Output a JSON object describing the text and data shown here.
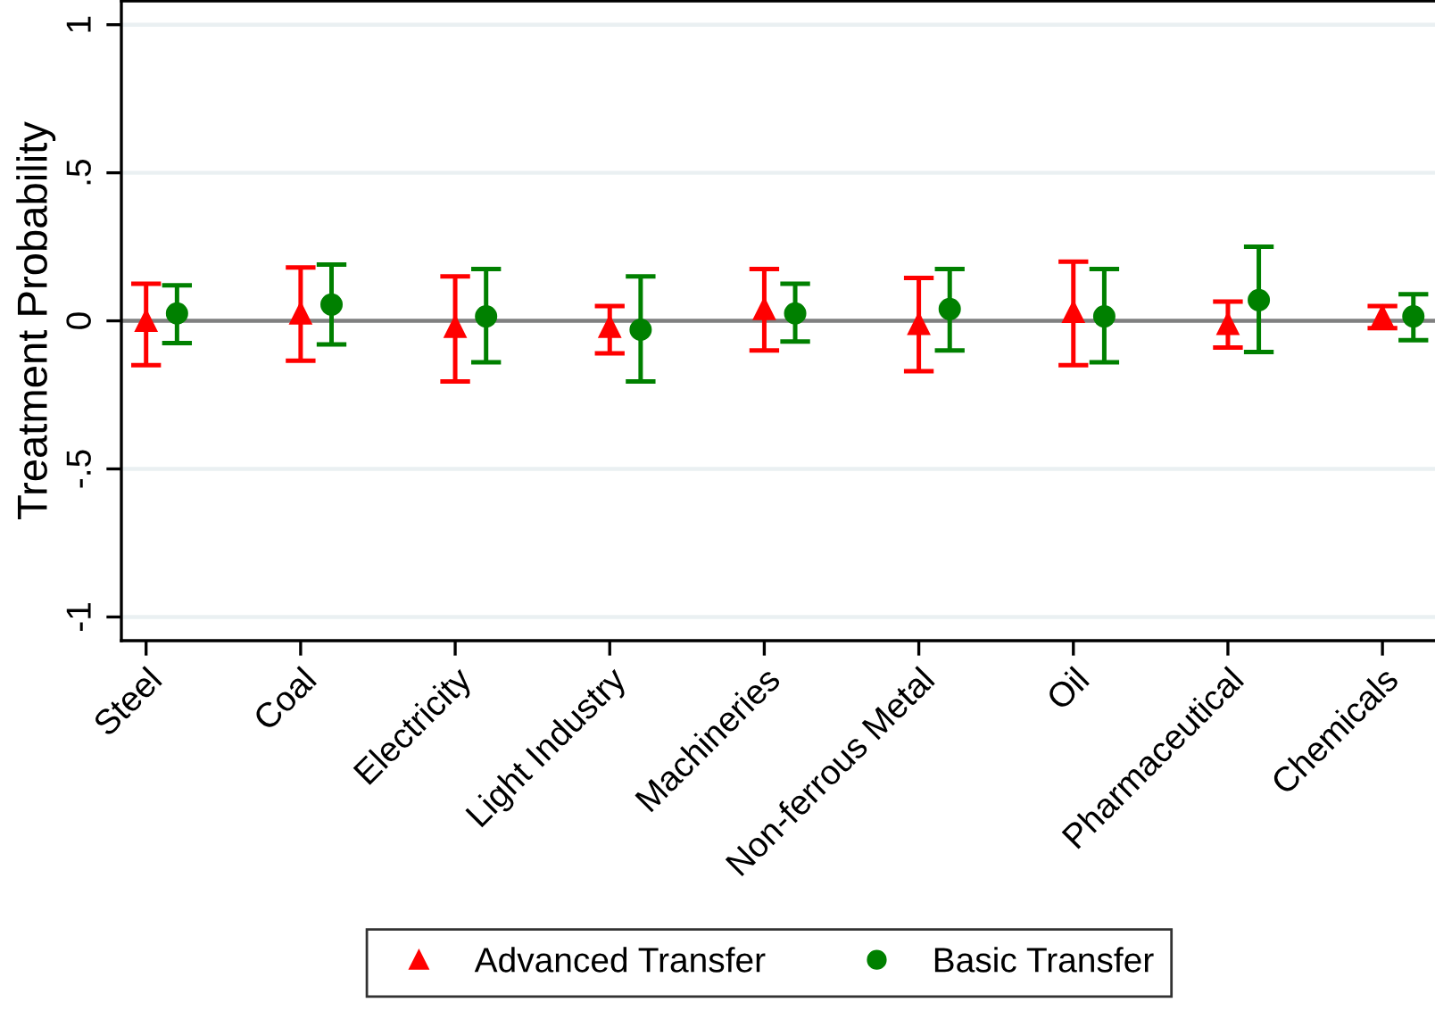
{
  "chart_data": {
    "type": "scatter",
    "ylabel": "Treatment Probability",
    "categories": [
      "Steel",
      "Coal",
      "Electricity",
      "Light Industry",
      "Machineries",
      "Non-ferrous Metal",
      "Oil",
      "Pharmaceutical",
      "Chemicals"
    ],
    "series": [
      {
        "name": "Advanced Transfer",
        "color": "#ff0000",
        "marker": "triangle",
        "values": [
          0.0,
          0.025,
          -0.02,
          -0.02,
          0.04,
          -0.01,
          0.03,
          -0.01,
          0.015
        ],
        "errors": [
          [
            -0.15,
            0.125
          ],
          [
            -0.135,
            0.18
          ],
          [
            -0.205,
            0.15
          ],
          [
            -0.11,
            0.05
          ],
          [
            -0.1,
            0.175
          ],
          [
            -0.17,
            0.145
          ],
          [
            -0.15,
            0.2
          ],
          [
            -0.09,
            0.065
          ],
          [
            -0.025,
            0.05
          ]
        ]
      },
      {
        "name": "Basic Transfer",
        "color": "#008000",
        "marker": "circle",
        "values": [
          0.025,
          0.055,
          0.015,
          -0.03,
          0.025,
          0.04,
          0.015,
          0.07,
          0.015
        ],
        "errors": [
          [
            -0.075,
            0.12
          ],
          [
            -0.08,
            0.19
          ],
          [
            -0.14,
            0.175
          ],
          [
            -0.205,
            0.15
          ],
          [
            -0.07,
            0.125
          ],
          [
            -0.1,
            0.175
          ],
          [
            -0.14,
            0.175
          ],
          [
            -0.105,
            0.25
          ],
          [
            -0.065,
            0.09
          ]
        ]
      }
    ],
    "ylim": [
      -1.08,
      1.08
    ],
    "yticks": [
      {
        "value": -1,
        "label": "-1"
      },
      {
        "value": -0.5,
        "label": "-.5"
      },
      0,
      {
        "value": 0.5,
        "label": ".5"
      },
      1
    ],
    "ref_lines": [
      {
        "axis": "y",
        "value": 0,
        "color": "#808080"
      }
    ],
    "grid": "y",
    "legend": "bottom"
  }
}
